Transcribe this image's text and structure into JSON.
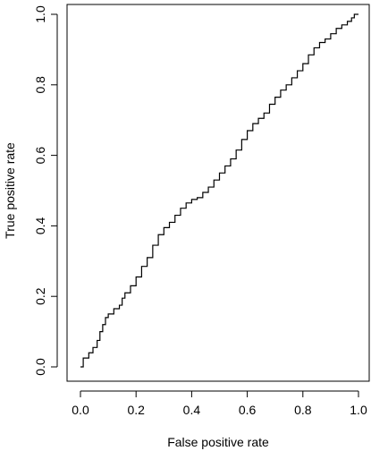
{
  "chart_data": {
    "type": "line",
    "title": "",
    "xlabel": "False positive rate",
    "ylabel": "True positive rate",
    "xlim": [
      0,
      1
    ],
    "ylim": [
      0,
      1
    ],
    "xticks": [
      0.0,
      0.2,
      0.4,
      0.6,
      0.8,
      1.0
    ],
    "yticks": [
      0.0,
      0.2,
      0.4,
      0.6,
      0.8,
      1.0
    ],
    "xtick_labels": [
      "0.0",
      "0.2",
      "0.4",
      "0.6",
      "0.8",
      "1.0"
    ],
    "ytick_labels": [
      "0.0",
      "0.2",
      "0.4",
      "0.6",
      "0.8",
      "1.0"
    ],
    "grid": false,
    "box": true,
    "series": [
      {
        "x": [
          0.0,
          0.01,
          0.03,
          0.045,
          0.06,
          0.07,
          0.08,
          0.09,
          0.1,
          0.12,
          0.14,
          0.15,
          0.16,
          0.18,
          0.2,
          0.22,
          0.24,
          0.26,
          0.28,
          0.3,
          0.32,
          0.34,
          0.36,
          0.38,
          0.4,
          0.42,
          0.44,
          0.46,
          0.48,
          0.5,
          0.52,
          0.54,
          0.56,
          0.58,
          0.6,
          0.62,
          0.64,
          0.66,
          0.68,
          0.7,
          0.72,
          0.74,
          0.76,
          0.78,
          0.8,
          0.82,
          0.84,
          0.86,
          0.88,
          0.9,
          0.92,
          0.94,
          0.96,
          0.975,
          0.985,
          1.0
        ],
        "y": [
          0.0,
          0.025,
          0.04,
          0.055,
          0.075,
          0.1,
          0.12,
          0.14,
          0.15,
          0.165,
          0.175,
          0.195,
          0.21,
          0.23,
          0.255,
          0.285,
          0.31,
          0.345,
          0.375,
          0.395,
          0.41,
          0.43,
          0.45,
          0.465,
          0.475,
          0.48,
          0.495,
          0.51,
          0.53,
          0.55,
          0.57,
          0.59,
          0.615,
          0.645,
          0.67,
          0.69,
          0.705,
          0.72,
          0.745,
          0.765,
          0.785,
          0.8,
          0.82,
          0.84,
          0.86,
          0.885,
          0.905,
          0.92,
          0.93,
          0.945,
          0.96,
          0.97,
          0.98,
          0.99,
          1.0,
          1.0
        ]
      }
    ]
  }
}
